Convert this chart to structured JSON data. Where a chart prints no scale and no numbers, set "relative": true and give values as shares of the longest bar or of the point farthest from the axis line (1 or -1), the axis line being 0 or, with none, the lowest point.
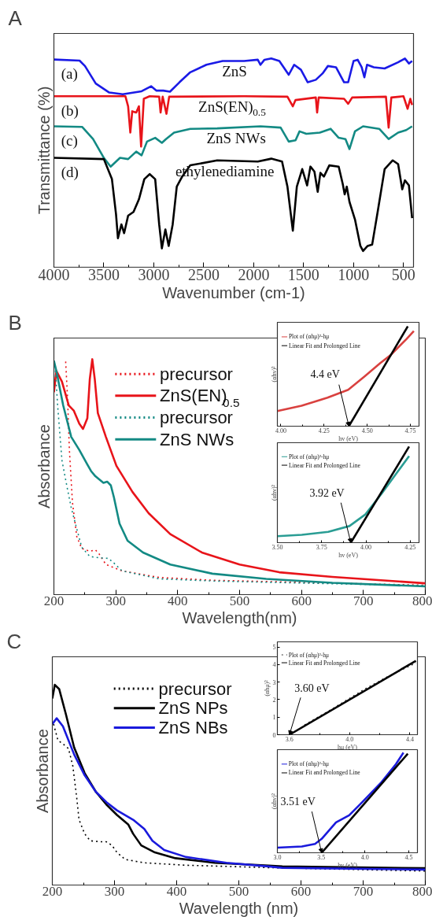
{
  "chart_data": [
    {
      "type": "line",
      "title": "A",
      "xlabel": "Wavenumber (cm-1)",
      "ylabel": "Transmittance (%)",
      "relative": true,
      "xlim": [
        4000,
        400
      ],
      "xticks": [
        4000,
        3500,
        3000,
        2500,
        2000,
        1500,
        1000,
        500
      ],
      "annotations": [
        "(a)",
        "(b)",
        "(c)",
        "(d)"
      ],
      "series": [
        {
          "name": "ZnS",
          "color": "#1a1ae6",
          "x": [
            4000,
            3743,
            3689,
            3581,
            3446,
            3311,
            3122,
            3027,
            2973,
            2905,
            2838,
            2743,
            2635,
            2473,
            2311,
            2095,
            1959,
            1932,
            1892,
            1824,
            1743,
            1649,
            1595,
            1527,
            1459,
            1378,
            1311,
            1257,
            1176,
            1095,
            1054,
            1000,
            959,
            919,
            892,
            865,
            797,
            689,
            554,
            486,
            446,
            414
          ],
          "values": [
            0.995,
            0.99,
            0.964,
            0.88,
            0.837,
            0.829,
            0.843,
            0.867,
            0.846,
            0.846,
            0.841,
            0.886,
            0.934,
            0.97,
            0.988,
            0.988,
            0.994,
            0.97,
            0.994,
            1.0,
            0.988,
            0.922,
            0.97,
            0.946,
            0.886,
            0.898,
            0.928,
            0.964,
            0.958,
            0.886,
            0.886,
            0.988,
            0.994,
            0.958,
            0.91,
            0.97,
            0.958,
            0.952,
            0.982,
            1.0,
            0.976,
            0.988
          ]
        },
        {
          "name": "ZnS(EN)$_{0.5}$",
          "color": "#e8141a",
          "x": [
            4000,
            3284,
            3257,
            3235,
            3216,
            3176,
            3149,
            3127,
            3100,
            3041,
            2946,
            2932,
            2911,
            2873,
            2846,
            2095,
            1662,
            1608,
            1581,
            1378,
            1365,
            1349,
            1095,
            1054,
            1014,
            676,
            649,
            622,
            500,
            459,
            432,
            414
          ],
          "values": [
            0.819,
            0.819,
            0.771,
            0.645,
            0.747,
            0.741,
            0.771,
            0.578,
            0.807,
            0.819,
            0.817,
            0.741,
            0.817,
            0.735,
            0.817,
            0.819,
            0.817,
            0.771,
            0.801,
            0.813,
            0.741,
            0.813,
            0.807,
            0.783,
            0.813,
            0.817,
            0.669,
            0.813,
            0.819,
            0.759,
            0.807,
            0.777
          ]
        },
        {
          "name": "ZnS NWs",
          "color": "#138a84",
          "x": [
            4000,
            3716,
            3608,
            3500,
            3432,
            3338,
            3257,
            3176,
            3122,
            3068,
            2986,
            2919,
            2878,
            2797,
            2635,
            2365,
            1932,
            1730,
            1649,
            1581,
            1541,
            1473,
            1338,
            1230,
            1149,
            1081,
            1041,
            986,
            905,
            743,
            649,
            554,
            473,
            414
          ],
          "values": [
            0.675,
            0.672,
            0.614,
            0.524,
            0.482,
            0.524,
            0.518,
            0.554,
            0.536,
            0.602,
            0.62,
            0.596,
            0.614,
            0.645,
            0.663,
            0.665,
            0.675,
            0.669,
            0.602,
            0.608,
            0.651,
            0.639,
            0.645,
            0.663,
            0.62,
            0.614,
            0.566,
            0.651,
            0.675,
            0.663,
            0.614,
            0.645,
            0.657,
            0.675
          ]
        },
        {
          "name": "ethylenediamine",
          "color": "#000000",
          "x": [
            4000,
            3500,
            3419,
            3378,
            3359,
            3324,
            3297,
            3257,
            3203,
            3149,
            3095,
            3041,
            2986,
            2946,
            2919,
            2884,
            2851,
            2811,
            2770,
            2716,
            2635,
            2365,
            1959,
            1824,
            1716,
            1662,
            1608,
            1568,
            1514,
            1465,
            1432,
            1392,
            1359,
            1332,
            1297,
            1243,
            1149,
            1108,
            1089,
            1068,
            1041,
            986,
            932,
            905,
            859,
            814,
            759,
            689,
            608,
            554,
            513,
            486,
            446,
            414
          ],
          "values": [
            0.524,
            0.518,
            0.422,
            0.253,
            0.139,
            0.205,
            0.163,
            0.247,
            0.265,
            0.325,
            0.422,
            0.446,
            0.422,
            0.205,
            0.09,
            0.181,
            0.102,
            0.205,
            0.386,
            0.434,
            0.488,
            0.512,
            0.506,
            0.52,
            0.506,
            0.386,
            0.175,
            0.386,
            0.47,
            0.392,
            0.482,
            0.458,
            0.361,
            0.452,
            0.434,
            0.488,
            0.482,
            0.398,
            0.349,
            0.386,
            0.313,
            0.229,
            0.102,
            0.078,
            0.102,
            0.108,
            0.265,
            0.47,
            0.512,
            0.494,
            0.373,
            0.416,
            0.392,
            0.235
          ]
        }
      ]
    },
    {
      "type": "line",
      "title": "B",
      "xlabel": "Wavelength(nm)",
      "ylabel": "Absorbance",
      "relative": true,
      "xlim": [
        200,
        800
      ],
      "xticks": [
        200,
        300,
        400,
        500,
        600,
        700,
        800
      ],
      "legend": "top",
      "series": [
        {
          "name": "precursor",
          "color": "#e8141a",
          "line_style": "dotted",
          "x": [
            219,
            222,
            225,
            230,
            237,
            245,
            258,
            267,
            273,
            284,
            310,
            370,
            456,
            586,
            800
          ],
          "values": [
            0.99,
            0.838,
            0.615,
            0.391,
            0.246,
            0.196,
            0.184,
            0.19,
            0.173,
            0.128,
            0.101,
            0.073,
            0.061,
            0.053,
            0.04
          ]
        },
        {
          "name": "ZnS(EN)$_{0.5}$",
          "color": "#e8141a",
          "x": [
            200,
            204,
            213,
            224,
            232,
            241,
            247,
            254,
            258,
            262,
            266,
            271,
            284,
            301,
            327,
            353,
            388,
            439,
            500,
            564,
            650,
            800
          ],
          "values": [
            0.86,
            0.95,
            0.905,
            0.804,
            0.782,
            0.726,
            0.704,
            0.749,
            0.916,
            1.0,
            0.916,
            0.771,
            0.67,
            0.547,
            0.436,
            0.346,
            0.257,
            0.179,
            0.128,
            0.095,
            0.075,
            0.048
          ]
        },
        {
          "name": "precursor",
          "color": "#138a84",
          "line_style": "dotted",
          "x": [
            202,
            206,
            213,
            222,
            228,
            237,
            245,
            258,
            275,
            288,
            297,
            310,
            370,
            456,
            586,
            800
          ],
          "values": [
            0.972,
            0.804,
            0.57,
            0.447,
            0.369,
            0.279,
            0.201,
            0.162,
            0.156,
            0.154,
            0.134,
            0.101,
            0.067,
            0.058,
            0.05,
            0.038
          ]
        },
        {
          "name": "ZnS NWs",
          "color": "#138a84",
          "x": [
            200,
            204,
            215,
            228,
            241,
            254,
            260,
            267,
            280,
            286,
            292,
            297,
            306,
            319,
            344,
            388,
            456,
            543,
            650,
            800
          ],
          "values": [
            0.994,
            0.95,
            0.804,
            0.67,
            0.615,
            0.553,
            0.525,
            0.503,
            0.475,
            0.48,
            0.464,
            0.413,
            0.302,
            0.229,
            0.179,
            0.128,
            0.089,
            0.067,
            0.05,
            0.035
          ]
        }
      ]
    },
    {
      "type": "line",
      "xlabel": "hv (eV)",
      "ylabel": "(αhv)²",
      "relative": true,
      "xlim": [
        3.98,
        4.8
      ],
      "xticks": [
        {
          "value": 4.0,
          "label": "4.00"
        },
        4.25,
        {
          "value": 4.5,
          "label": "4.50"
        },
        4.75
      ],
      "legend": "top left",
      "annotations": [
        {
          "text": "4.4 eV",
          "x": 4.394,
          "y": 0
        }
      ],
      "series": [
        {
          "name": "Plot of (αhμ)²-hμ",
          "color": "#d9413f",
          "x": [
            3.98,
            4.12,
            4.27,
            4.39,
            4.485,
            4.576,
            4.636,
            4.727,
            4.77
          ],
          "values": [
            0.152,
            0.205,
            0.285,
            0.365,
            0.499,
            0.632,
            0.712,
            0.872,
            0.952
          ]
        },
        {
          "name": "Linear Fit and Prolonged Line",
          "color": "#000000",
          "x": [
            4.394,
            4.735
          ],
          "values": [
            0,
            1.0
          ]
        }
      ]
    },
    {
      "type": "line",
      "xlabel": "hv (eV)",
      "ylabel": "(αhv)²",
      "relative": true,
      "xlim": [
        3.5,
        4.3
      ],
      "xticks": [
        {
          "value": 3.5,
          "label": "3.50"
        },
        3.75,
        {
          "value": 4.0,
          "label": "4.00"
        },
        4.25
      ],
      "legend": "top left",
      "annotations": [
        {
          "text": "3.92 eV",
          "x": 3.915,
          "y": 0
        }
      ],
      "series": [
        {
          "name": "Plot of (αhμ)²-hμ",
          "color": "#2a9d94",
          "x": [
            3.5,
            3.638,
            3.787,
            3.907,
            3.997,
            4.087,
            4.177,
            4.244
          ],
          "values": [
            0.067,
            0.082,
            0.112,
            0.173,
            0.294,
            0.506,
            0.733,
            0.9
          ]
        },
        {
          "name": "Linear Fit and Prolonged Line",
          "color": "#000000",
          "x": [
            3.915,
            4.244
          ],
          "values": [
            0,
            1.0
          ]
        }
      ]
    },
    {
      "type": "line",
      "title": "C",
      "xlabel": "Wavelength (nm)",
      "ylabel": "Absorbance",
      "relative": true,
      "xlim": [
        200,
        800
      ],
      "xticks": [
        200,
        300,
        400,
        500,
        600,
        700,
        800
      ],
      "legend": "top",
      "series": [
        {
          "name": "precursor",
          "color": "#000000",
          "line_style": "dotted",
          "x": [
            202,
            209,
            217,
            226,
            233,
            239,
            243,
            252,
            261,
            278,
            287,
            296,
            304,
            317,
            348,
            415,
            548,
            800
          ],
          "values": [
            0.804,
            0.723,
            0.705,
            0.682,
            0.594,
            0.443,
            0.326,
            0.256,
            0.221,
            0.216,
            0.216,
            0.198,
            0.163,
            0.128,
            0.111,
            0.099,
            0.087,
            0.07
          ]
        },
        {
          "name": "ZnS NPs",
          "color": "#000000",
          "x": [
            200,
            204,
            211,
            222,
            235,
            252,
            270,
            287,
            304,
            322,
            330,
            343,
            365,
            398,
            461,
            548,
            570,
            800
          ],
          "values": [
            0.932,
            1.0,
            0.979,
            0.851,
            0.688,
            0.559,
            0.466,
            0.402,
            0.35,
            0.303,
            0.256,
            0.198,
            0.163,
            0.134,
            0.111,
            0.097,
            0.093,
            0.084
          ]
        },
        {
          "name": "ZnS NBs",
          "color": "#1a1adc",
          "x": [
            200,
            207,
            217,
            235,
            252,
            270,
            287,
            304,
            330,
            348,
            361,
            380,
            415,
            480,
            548,
            570,
            800
          ],
          "values": [
            0.804,
            0.833,
            0.793,
            0.653,
            0.548,
            0.466,
            0.414,
            0.373,
            0.326,
            0.28,
            0.221,
            0.175,
            0.14,
            0.111,
            0.093,
            0.086,
            0.077
          ]
        }
      ]
    },
    {
      "type": "line",
      "xlabel": "hμ (eV)",
      "ylabel": "(αhμ)²",
      "xlim": [
        3.52,
        4.45
      ],
      "xticks": [
        3.6,
        {
          "value": 4,
          "label": "4.0"
        },
        4.4
      ],
      "ylim": [
        0,
        5.3
      ],
      "yticks": [
        0,
        1,
        2,
        3,
        4,
        5
      ],
      "legend": "top left",
      "annotations": [
        {
          "text": "3.60 eV",
          "x": 3.6,
          "y": 0
        }
      ],
      "series": [
        {
          "name": "Plot of (αhμ)²-hμ",
          "color": "#333333",
          "line_style": "dotted",
          "x": [
            3.7,
            3.9,
            4.1,
            4.25,
            4.44
          ],
          "values": [
            0.55,
            1.55,
            2.6,
            3.3,
            4.1
          ]
        },
        {
          "name": "Linear Fit and Prolonged Line",
          "color": "#000000",
          "x": [
            3.6,
            4.44
          ],
          "values": [
            0,
            4.22
          ]
        }
      ]
    },
    {
      "type": "line",
      "xlabel": "hv (eV)",
      "ylabel": "(αhv)²",
      "relative": true,
      "xlim": [
        3.0,
        4.6
      ],
      "xticks": [
        {
          "value": 3,
          "label": "3.0"
        },
        3.5,
        {
          "value": 4,
          "label": "4.0"
        },
        4.5
      ],
      "legend": "top left",
      "annotations": [
        {
          "text": "3.51 eV",
          "x": 3.506,
          "y": 0
        }
      ],
      "series": [
        {
          "name": "Plot of (αhμ)²-hμ",
          "color": "#1a1adc",
          "x": [
            3.0,
            3.28,
            3.43,
            3.506,
            3.67,
            3.82,
            3.97,
            4.18,
            4.355,
            4.44
          ],
          "values": [
            0.051,
            0.063,
            0.089,
            0.139,
            0.304,
            0.375,
            0.506,
            0.696,
            0.886,
            1.0
          ]
        },
        {
          "name": "Linear Fit and Prolonged Line",
          "color": "#000000",
          "x": [
            3.506,
            4.49
          ],
          "values": [
            0,
            0.99
          ]
        }
      ]
    }
  ]
}
